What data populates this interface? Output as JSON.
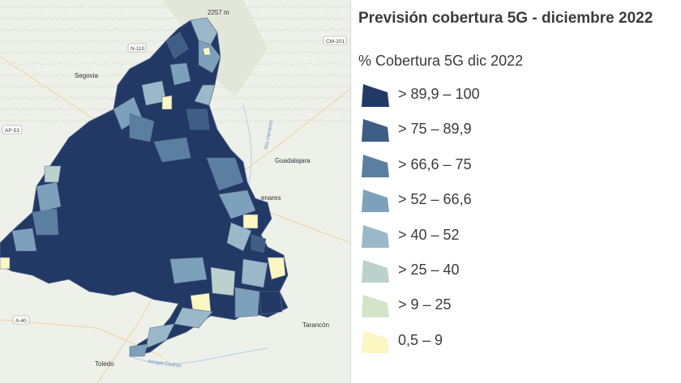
{
  "legend": {
    "title": "Previsión cobertura 5G - diciembre 2022",
    "subtitle": "% Cobertura 5G dic 2022",
    "classes": [
      {
        "label": "> 89,9 – 100",
        "color": "#223865"
      },
      {
        "label": "> 75 – 89,9",
        "color": "#3f5e85"
      },
      {
        "label": "> 66,6 – 75",
        "color": "#5b7fa1"
      },
      {
        "label": "> 52 – 66,6",
        "color": "#7da1ba"
      },
      {
        "label": "> 40 – 52",
        "color": "#9ab8c7"
      },
      {
        "label": "> 25 – 40",
        "color": "#bcd1cc"
      },
      {
        "label": "> 9 – 25",
        "color": "#d4e4c8"
      },
      {
        "label": "0,5 – 9",
        "color": "#fbf6c2"
      }
    ]
  },
  "basemap": {
    "places": [
      "Segovia",
      "Guadalajara",
      "enares",
      "Tarancón",
      "Toledo"
    ],
    "roads": [
      "N-110",
      "CM-101",
      "AP-51",
      "A-40"
    ],
    "rivers": [
      "Río Henares",
      "Arroyo Cedron"
    ],
    "elevation": "2257 m"
  }
}
